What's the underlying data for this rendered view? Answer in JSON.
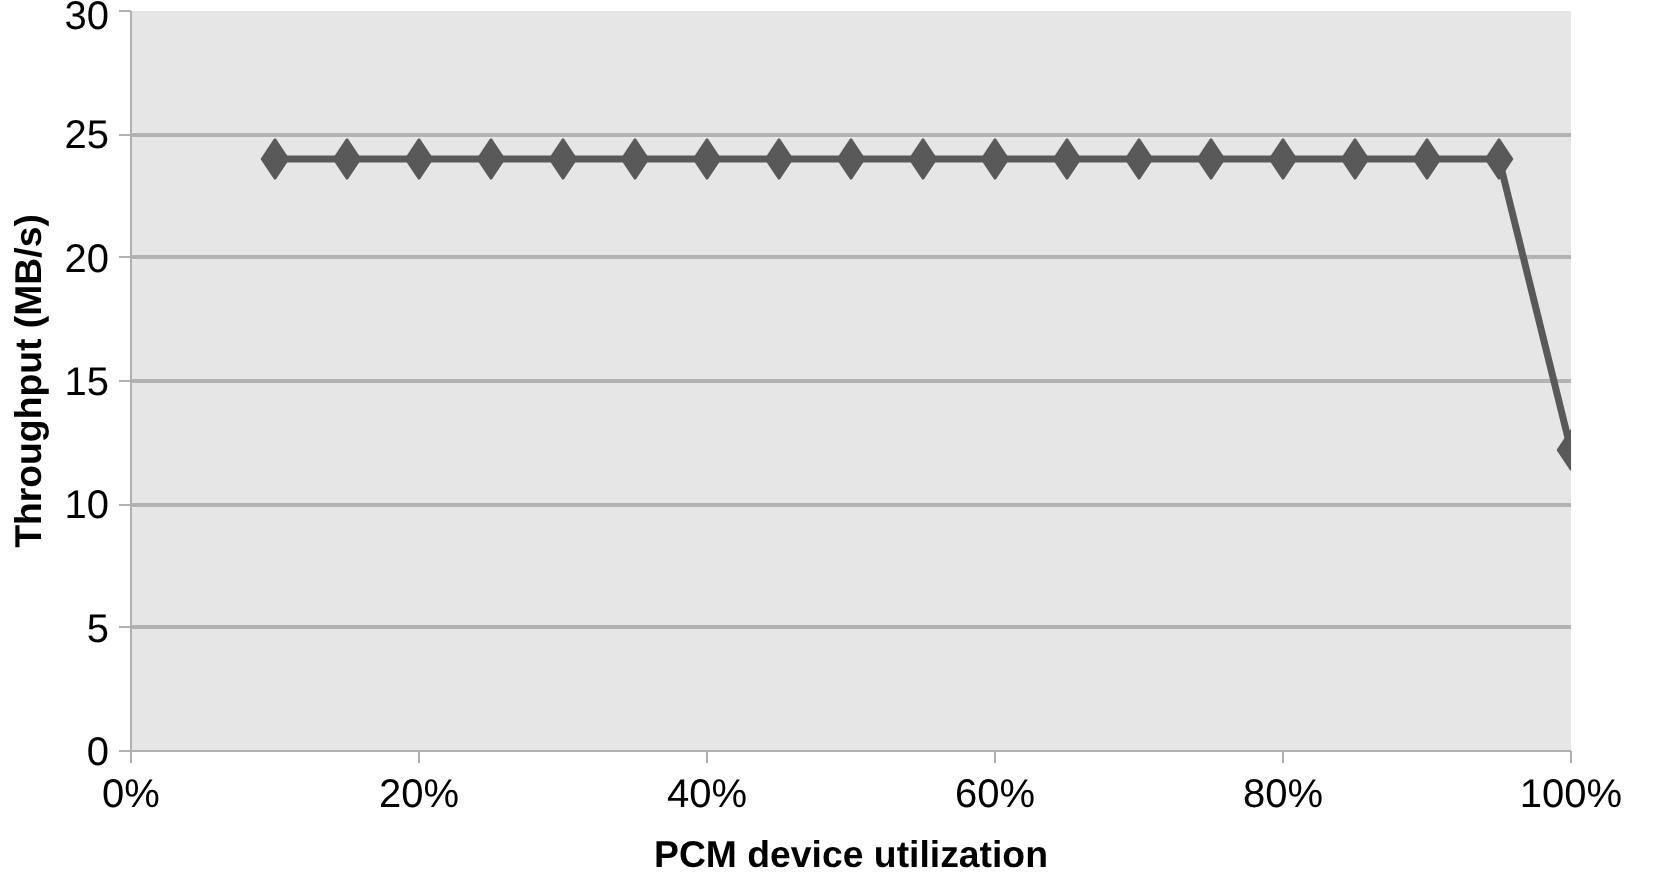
{
  "chart_data": {
    "type": "line",
    "xlabel": "PCM device utilization",
    "ylabel": "Throughput (MB/s)",
    "x": [
      10,
      15,
      20,
      25,
      30,
      35,
      40,
      45,
      50,
      55,
      60,
      65,
      70,
      75,
      80,
      85,
      90,
      95,
      100
    ],
    "series": [
      {
        "color": "#595959",
        "values": [
          24,
          24,
          24,
          24,
          24,
          24,
          24,
          24,
          24,
          24,
          24,
          24,
          24,
          24,
          24,
          24,
          24,
          24,
          12.2
        ]
      }
    ],
    "xlim": [
      0,
      100
    ],
    "xticks": [
      {
        "value": 0,
        "label": "0%"
      },
      {
        "value": 20,
        "label": "20%"
      },
      {
        "value": 40,
        "label": "40%"
      },
      {
        "value": 60,
        "label": "60%"
      },
      {
        "value": 80,
        "label": "80%"
      },
      {
        "value": 100,
        "label": "100%"
      }
    ],
    "ylim": [
      0,
      30
    ],
    "yticks": [
      0,
      5,
      10,
      15,
      20,
      25,
      30
    ],
    "grid": "y",
    "marker": "diamond",
    "line_style": "solid"
  }
}
